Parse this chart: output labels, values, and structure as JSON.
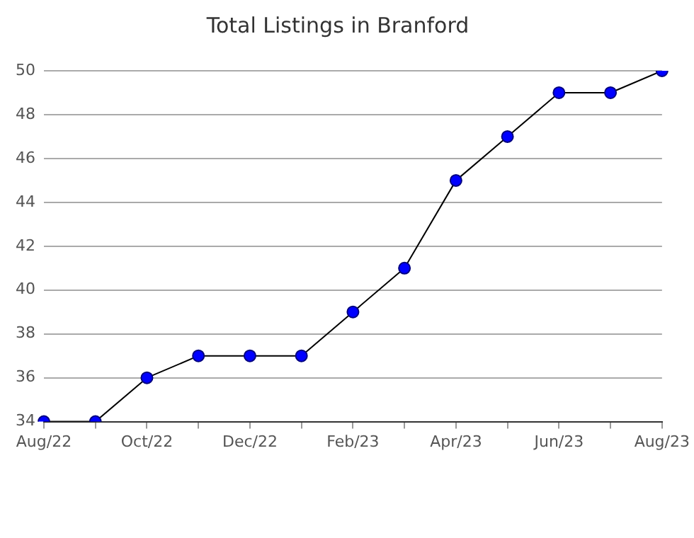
{
  "chart_data": {
    "type": "line",
    "title": "Total Listings in Branford",
    "categories": [
      "Aug/22",
      null,
      "Oct/22",
      null,
      "Dec/22",
      null,
      "Feb/23",
      null,
      "Apr/23",
      null,
      "Jun/23",
      null,
      "Aug/23"
    ],
    "series": [
      {
        "color": "#0000ff",
        "values": [
          34,
          34,
          36,
          37,
          37,
          37,
          39,
          41,
          45,
          47,
          49,
          49,
          50
        ]
      }
    ],
    "ylim": [
      34,
      50
    ],
    "yticks": [
      34,
      36,
      38,
      40,
      42,
      44,
      46,
      48,
      50
    ],
    "grid": "y",
    "legend": false,
    "marker": "circle",
    "line_style": "solid"
  }
}
